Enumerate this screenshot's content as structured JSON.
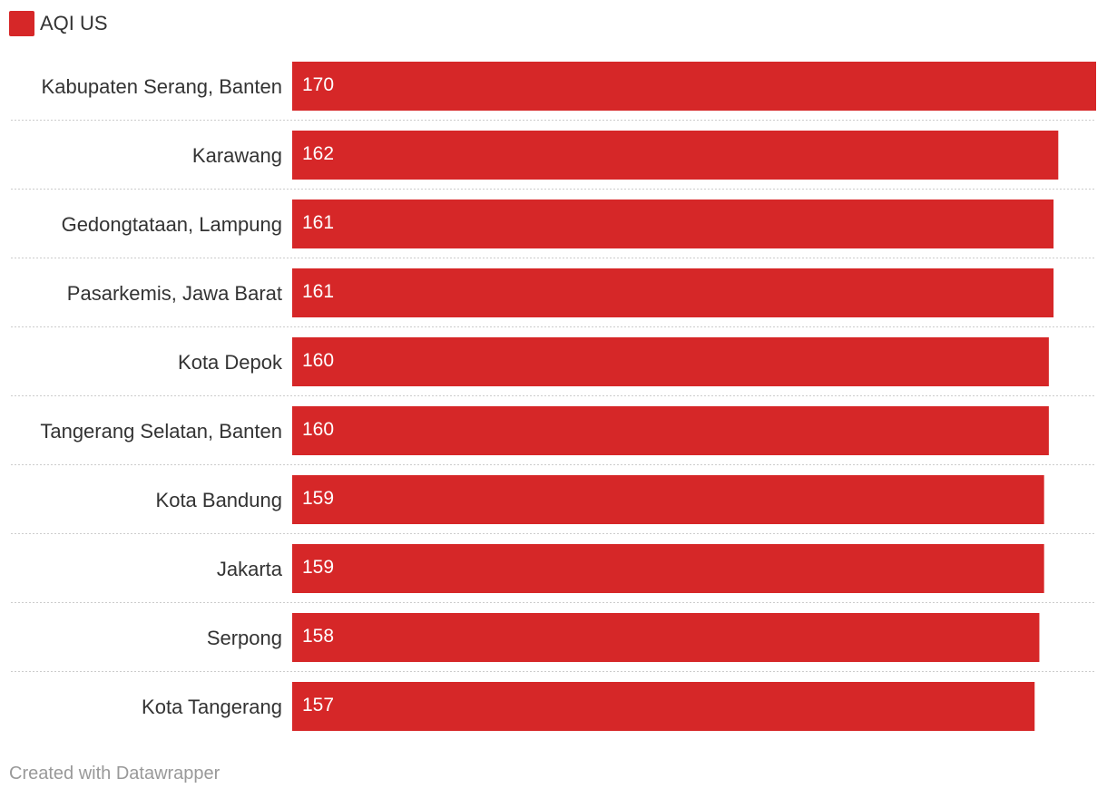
{
  "legend": {
    "label": "AQI US"
  },
  "footer": {
    "text": "Created with Datawrapper"
  },
  "colors": {
    "bar": "#d62728",
    "separator": "#cccccc"
  },
  "chart_data": {
    "type": "bar",
    "orientation": "horizontal",
    "categories": [
      "Kabupaten Serang, Banten",
      "Karawang",
      "Gedongtataan, Lampung",
      "Pasarkemis, Jawa Barat",
      "Kota Depok",
      "Tangerang Selatan, Banten",
      "Kota Bandung",
      "Jakarta",
      "Serpong",
      "Kota Tangerang"
    ],
    "series": [
      {
        "name": "AQI US",
        "values": [
          170,
          162,
          161,
          161,
          160,
          160,
          159,
          159,
          158,
          157
        ]
      }
    ],
    "xlim": [
      0,
      170
    ],
    "grid": false,
    "legend_position": "top-left"
  }
}
